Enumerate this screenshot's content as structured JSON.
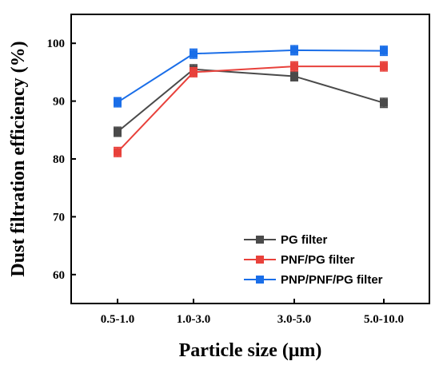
{
  "chart_data": {
    "type": "line",
    "xlabel": "Particle size (μm)",
    "ylabel": "Dust filtration efficiency (%)",
    "categories": [
      "0.5-1.0",
      "1.0-3.0",
      "3.0-5.0",
      "5.0-10.0"
    ],
    "ylim": [
      55,
      105
    ],
    "yticks": [
      60,
      70,
      80,
      90,
      100
    ],
    "grid": false,
    "legend_position": "bottom-right",
    "series": [
      {
        "name": "PG filter",
        "color": "#4a4a4a",
        "values": [
          84.7,
          95.5,
          94.3,
          89.7
        ],
        "errors": [
          0.8,
          0.8,
          0.8,
          0.8
        ]
      },
      {
        "name": "PNF/PG filter",
        "color": "#e8413b",
        "values": [
          81.2,
          95.0,
          96.0,
          96.0
        ],
        "errors": [
          0.8,
          0.8,
          0.8,
          0.8
        ]
      },
      {
        "name": "PNP/PNF/PG filter",
        "color": "#1a6ee8",
        "values": [
          89.8,
          98.2,
          98.8,
          98.7
        ],
        "errors": [
          0.8,
          0.8,
          0.8,
          0.8
        ]
      }
    ]
  }
}
